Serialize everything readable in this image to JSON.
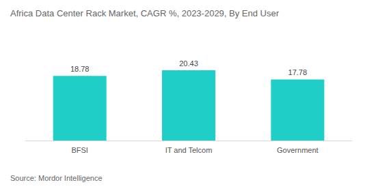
{
  "chart_data": {
    "type": "bar",
    "title": "Africa Data Center Rack Market, CAGR %, 2023-2029, By End User",
    "source": "Source: Mordor Intelligence",
    "categories": [
      "BFSI",
      "IT and Telcom",
      "Government"
    ],
    "values": [
      18.78,
      20.43,
      17.78
    ],
    "color": "#1fcfc7",
    "grid": false,
    "data_labels": true,
    "tick_labels": "x"
  }
}
